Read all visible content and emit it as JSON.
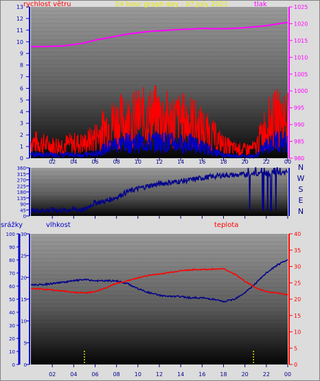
{
  "title": "24 hour graph day : 07.July 2021",
  "colors": {
    "title": "#e8e800",
    "wind": "#ff0000",
    "gust": "#ff0000",
    "wind_avg": "#0000c8",
    "pressure": "#ff00ff",
    "direction": "#00008c",
    "humidity": "#00008c",
    "temperature": "#ff0000",
    "rain": "#f0f000",
    "axis_text": "#0000c8",
    "pressure_text": "#ff00ff",
    "temp_text": "#ff0000",
    "xtick_text": "#00008c"
  },
  "time_ticks": [
    "02",
    "04",
    "06",
    "08",
    "10",
    "12",
    "14",
    "16",
    "18",
    "20",
    "22",
    "00"
  ],
  "compass": [
    "N",
    "W",
    "S",
    "E",
    "N"
  ],
  "chart_data": [
    {
      "type": "line",
      "title": "24 hour graph day : 07.July 2021",
      "xlabel": "",
      "ylabel": "rychlost větru",
      "y2label": "tlak",
      "x_range": [
        0,
        24
      ],
      "ylim": [
        0,
        13
      ],
      "y2lim": [
        980,
        1025
      ],
      "y_ticks": [
        "0",
        "1",
        "2",
        "3",
        "4",
        "5",
        "6",
        "7",
        "8",
        "9",
        "10",
        "11",
        "12",
        "13"
      ],
      "y2_ticks": [
        "980",
        "985",
        "990",
        "995",
        "1000",
        "1005",
        "1010",
        "1015",
        "1020",
        "1025"
      ],
      "grid": false,
      "series": [
        {
          "key": "pressure",
          "x": [
            0,
            1,
            2,
            3,
            4,
            5,
            6,
            7,
            8,
            9,
            10,
            11,
            12,
            13,
            14,
            15,
            16,
            17,
            18,
            19,
            20,
            21,
            22,
            23,
            24
          ],
          "values": [
            1013.2,
            1013.2,
            1013.3,
            1013.4,
            1013.8,
            1014.3,
            1015.1,
            1015.7,
            1016.3,
            1016.9,
            1017.3,
            1017.7,
            1017.9,
            1018.1,
            1018.3,
            1018.4,
            1018.6,
            1018.5,
            1018.5,
            1018.6,
            1018.8,
            1019.1,
            1019.4,
            1019.9,
            1020.4
          ]
        },
        {
          "key": "gust",
          "x": [
            0,
            1,
            2,
            3,
            4,
            5,
            6,
            7,
            8,
            9,
            10,
            11,
            12,
            13,
            14,
            15,
            16,
            17,
            18,
            19,
            20,
            21,
            22,
            23,
            24
          ],
          "values": [
            1.6,
            1.4,
            1.2,
            1.3,
            1.4,
            1.4,
            2.0,
            3.0,
            3.5,
            3.6,
            3.8,
            3.9,
            4.0,
            3.6,
            3.6,
            3.5,
            2.8,
            2.1,
            1.3,
            0.9,
            0.8,
            1.0,
            3.2,
            3.8,
            4.0
          ]
        },
        {
          "key": "wind_avg",
          "x": [
            0,
            1,
            2,
            3,
            4,
            5,
            6,
            7,
            8,
            9,
            10,
            11,
            12,
            13,
            14,
            15,
            16,
            17,
            18,
            19,
            20,
            21,
            22,
            23,
            24
          ],
          "values": [
            0.4,
            0.3,
            0.3,
            0.3,
            0.3,
            0.3,
            0.4,
            0.9,
            1.3,
            1.4,
            1.4,
            1.4,
            1.5,
            1.4,
            1.3,
            1.3,
            1.0,
            0.6,
            0.3,
            0.2,
            0.2,
            0.2,
            1.1,
            1.6,
            1.4
          ]
        }
      ]
    },
    {
      "type": "line",
      "ylabel": "",
      "x_range": [
        0,
        24
      ],
      "ylim": [
        0,
        360
      ],
      "y_ticks": [
        "0",
        "45",
        "90",
        "135",
        "180",
        "225",
        "270",
        "315",
        "360"
      ],
      "series": [
        {
          "key": "direction",
          "x": [
            0,
            1,
            2,
            3,
            4,
            5,
            5.5,
            6,
            7,
            8,
            9,
            10,
            11,
            12,
            13,
            14,
            15,
            16,
            17,
            18,
            19,
            20,
            21,
            22,
            23,
            24
          ],
          "values": [
            40,
            40,
            45,
            40,
            50,
            45,
            75,
            100,
            110,
            140,
            180,
            205,
            225,
            240,
            250,
            260,
            270,
            285,
            295,
            305,
            305,
            310,
            315,
            320,
            320,
            325
          ]
        }
      ]
    },
    {
      "type": "line",
      "ylabel": "vlhkost",
      "y2label": "teplota",
      "y3label": "srážky",
      "x_range": [
        0,
        24
      ],
      "ylim": [
        0,
        30
      ],
      "y2lim": [
        0,
        40
      ],
      "y3lim": [
        0,
        100
      ],
      "y_ticks": [
        "0",
        "5",
        "10",
        "15",
        "20",
        "25",
        "30"
      ],
      "y2_ticks": [
        "0",
        "5",
        "10",
        "15",
        "20",
        "25",
        "30",
        "35",
        "40"
      ],
      "y3_ticks": [
        "0",
        "10",
        "20",
        "30",
        "40",
        "50",
        "60",
        "70",
        "80",
        "90",
        "100"
      ],
      "series": [
        {
          "key": "humidity",
          "x": [
            0,
            1,
            2,
            3,
            4,
            5,
            6,
            7,
            8,
            9,
            10,
            11,
            12,
            13,
            14,
            15,
            16,
            17,
            18,
            19,
            20,
            21,
            22,
            23,
            24
          ],
          "values": [
            61,
            61,
            62,
            63,
            64,
            65,
            64,
            64,
            64,
            62,
            58,
            55,
            53,
            52,
            52,
            51,
            51,
            50,
            48,
            50,
            55,
            62,
            70,
            76,
            80
          ]
        },
        {
          "key": "temperature",
          "x": [
            0,
            1,
            2,
            3,
            4,
            5,
            6,
            7,
            8,
            9,
            10,
            11,
            12,
            13,
            14,
            15,
            16,
            17,
            18,
            19,
            20,
            21,
            22,
            23,
            24
          ],
          "values": [
            23.2,
            23.1,
            22.8,
            22.5,
            22.1,
            21.9,
            22.3,
            23.5,
            24.8,
            25.6,
            26.5,
            27.3,
            27.7,
            28.2,
            28.7,
            29.0,
            29.1,
            29.2,
            29.3,
            27.8,
            25.5,
            23.5,
            22.3,
            21.8,
            21.4
          ]
        },
        {
          "key": "rain",
          "x": [
            5.0,
            20.8
          ],
          "values": [
            0,
            0
          ]
        }
      ]
    }
  ]
}
